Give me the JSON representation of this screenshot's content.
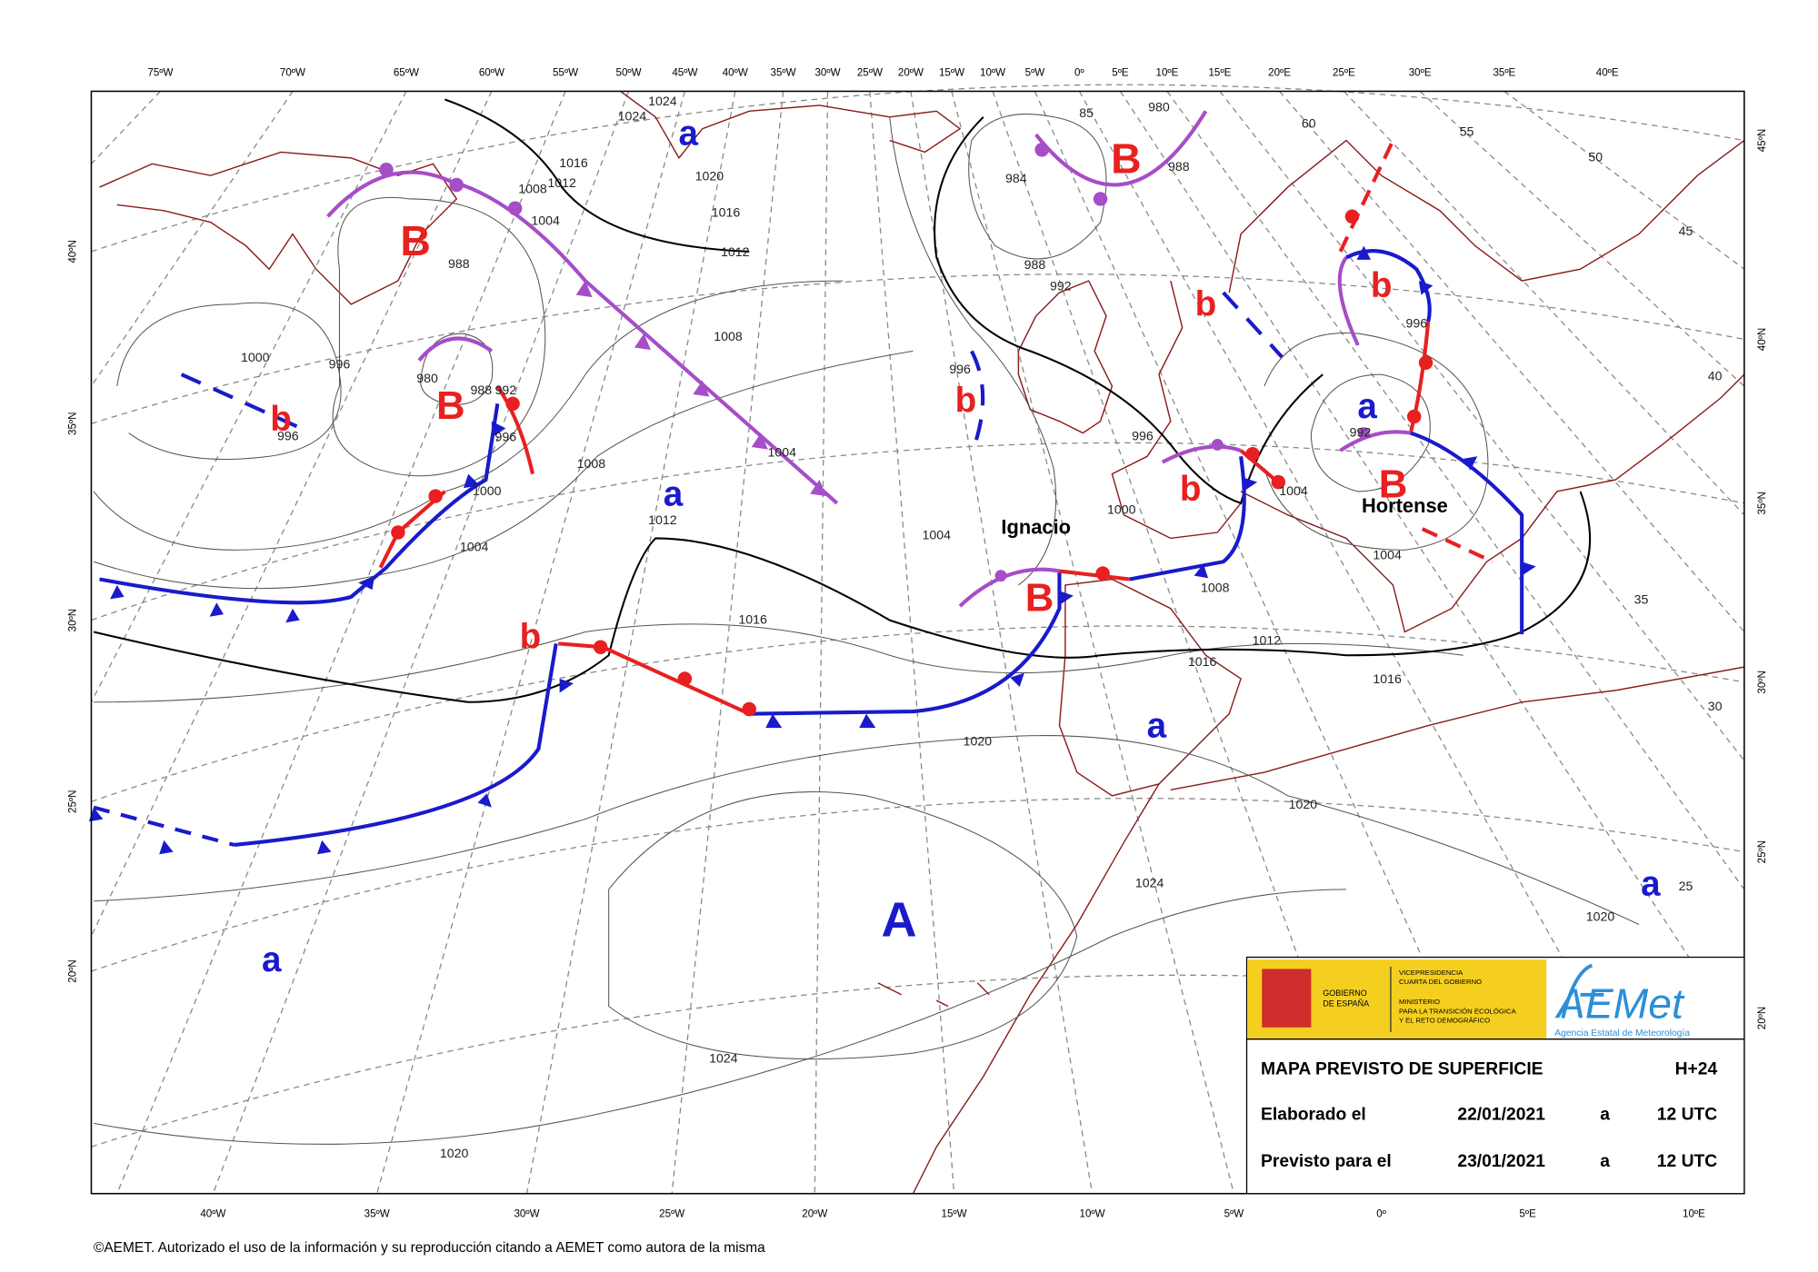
{
  "top_axis": [
    "75ºW",
    "70ºW",
    "65ºW",
    "60ºW",
    "55ºW",
    "50ºW",
    "45ºW",
    "40ºW",
    "35ºW",
    "30ºW",
    "25ºW",
    "20ºW",
    "15ºW",
    "10ºW",
    "5ºW",
    "0º",
    "5ºE",
    "10ºE",
    "15ºE",
    "20ºE",
    "25ºE",
    "30ºE",
    "35ºE",
    "40ºE"
  ],
  "bottom_axis": [
    "40ºW",
    "35ºW",
    "30ºW",
    "25ºW",
    "20ºW",
    "15ºW",
    "10ºW",
    "5ºW",
    "0º",
    "5ºE",
    "10ºE"
  ],
  "left_axis": [
    "40ºN",
    "35ºN",
    "30ºN",
    "25ºN",
    "20ºN"
  ],
  "right_axis": [
    "45ºN",
    "40ºN",
    "35ºN",
    "30ºN",
    "25ºN",
    "20ºN"
  ],
  "pressure_centers": [
    "B",
    "B",
    "b",
    "B",
    "b",
    "b",
    "b",
    "a",
    "B",
    "b",
    "B",
    "b",
    "a",
    "a",
    "a",
    "A",
    "a",
    "a"
  ],
  "isobar_labels": [
    "1024",
    "1024",
    "1016",
    "1012",
    "1008",
    "1004",
    "1020",
    "1016",
    "1012",
    "988",
    "1000",
    "996",
    "996",
    "980",
    "988",
    "992",
    "996",
    "1000",
    "1004",
    "1008",
    "1008",
    "1004",
    "1012",
    "1016",
    "1020",
    "1004",
    "984",
    "988",
    "992",
    "996",
    "996",
    "1000",
    "1004",
    "1008",
    "1012",
    "1016",
    "1016",
    "1020",
    "1004",
    "1024",
    "1020",
    "1024",
    "1020",
    "980",
    "85",
    "988",
    "996",
    "992",
    "50",
    "55",
    "45",
    "40",
    "35",
    "30",
    "25",
    "60"
  ],
  "storm_names": [
    "Ignacio",
    "Hortense"
  ],
  "info_box": {
    "gov_left": [
      "GOBIERNO",
      "DE ESPAÑA"
    ],
    "gov_right": [
      "VICEPRESIDENCIA",
      "CUARTA DEL GOBIERNO",
      "MINISTERIO",
      "PARA LA TRANSICIÓN ECOLÓGICA",
      "Y EL RETO DEMOGRÁFICO"
    ],
    "logo": "AEMet",
    "logo_sub": "Agencia Estatal de Meteorología",
    "title": "MAPA PREVISTO DE SUPERFICIE",
    "horizon": "H+24",
    "rows": [
      [
        "Elaborado el",
        "22/01/2021",
        "a",
        "12 UTC"
      ],
      [
        "Previsto para el",
        "23/01/2021",
        "a",
        "12 UTC"
      ]
    ]
  },
  "copyright": "©AEMET. Autorizado el uso de la información y su reproducción citando a AEMET como autora de la misma"
}
